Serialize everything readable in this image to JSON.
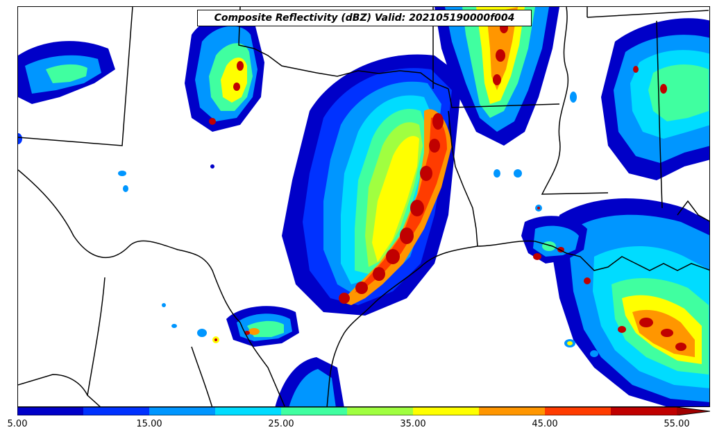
{
  "title": "Composite Reflectivity (dBZ) Valid: 202105190000f004",
  "colorbar": {
    "colors": [
      "#0000c8",
      "#0032ff",
      "#0096ff",
      "#00dcff",
      "#40ffa0",
      "#a0ff40",
      "#ffff00",
      "#ff9600",
      "#ff3c00",
      "#c00000"
    ],
    "extend_color": "#a00000",
    "tick_labels": [
      "5.00",
      "15.00",
      "25.00",
      "35.00",
      "45.00",
      "55.00"
    ],
    "min": 5,
    "max": 55,
    "step": 5
  },
  "map": {
    "boundary_color": "#000000",
    "background": "#ffffff"
  }
}
